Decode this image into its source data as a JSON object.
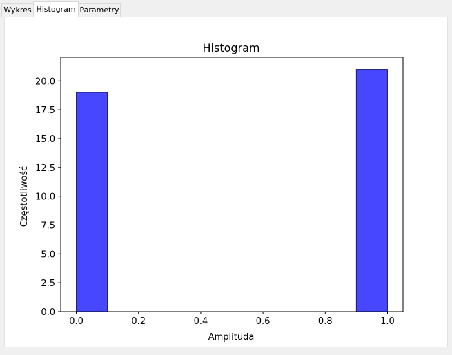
{
  "tabs": [
    {
      "label": "Wykres",
      "active": false
    },
    {
      "label": "Histogram",
      "active": true
    },
    {
      "label": "Parametry",
      "active": false
    }
  ],
  "colors": {
    "bar_fill": "#4747ff",
    "bar_edge": "#1a1a66",
    "axes": "#000000",
    "panel_bg": "#ffffff",
    "window_bg": "#f0f0f0"
  },
  "chart_data": {
    "type": "bar",
    "title": "Histogram",
    "xlabel": "Amplituda",
    "ylabel": "Częstotliwość",
    "bins": [
      {
        "start": 0.0,
        "end": 0.1,
        "count": 19
      },
      {
        "start": 0.9,
        "end": 1.0,
        "count": 21
      }
    ],
    "xlim": [
      -0.05,
      1.05
    ],
    "ylim": [
      0,
      22.05
    ],
    "xticks": [
      "0.0",
      "0.2",
      "0.4",
      "0.6",
      "0.8",
      "1.0"
    ],
    "yticks": [
      "0.0",
      "2.5",
      "5.0",
      "7.5",
      "10.0",
      "12.5",
      "15.0",
      "17.5",
      "20.0"
    ],
    "grid": false
  }
}
